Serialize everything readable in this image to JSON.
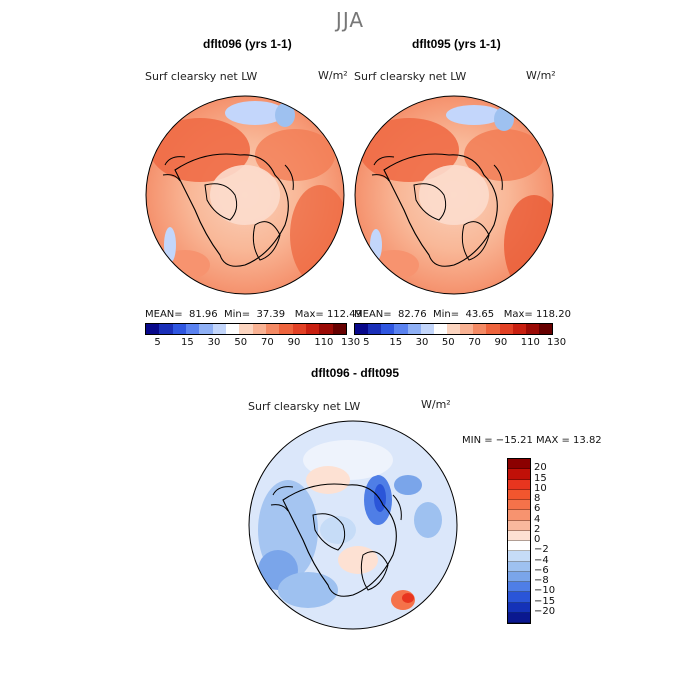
{
  "title": "JJA",
  "panels": [
    {
      "title": "dflt096 (yrs 1-1)",
      "variable": "Surf clearsky net LW",
      "units": "W/m²",
      "stats": {
        "mean": "81.96",
        "min": "37.39",
        "max": "112.49"
      }
    },
    {
      "title": "dflt095 (yrs 1-1)",
      "variable": "Surf clearsky net LW",
      "units": "W/m²",
      "stats": {
        "mean": "82.76",
        "min": "43.65",
        "max": "118.20"
      }
    }
  ],
  "stat_labels": {
    "mean": "MEAN=",
    "min": "Min=",
    "max": "Max="
  },
  "colorbar": {
    "ticks": [
      "5",
      "15",
      "30",
      "50",
      "70",
      "90",
      "110",
      "130"
    ],
    "colors": [
      "#08088a",
      "#1a2fb8",
      "#2f56e0",
      "#5a82f0",
      "#8fb0f5",
      "#c3d6fb",
      "#ffffff",
      "#fcd5c0",
      "#f9b293",
      "#f48a64",
      "#ee643d",
      "#e24125",
      "#c81f10",
      "#9a0a05",
      "#660000"
    ]
  },
  "diff": {
    "title": "dflt096 - dflt095",
    "variable": "Surf clearsky net LW",
    "units": "W/m²",
    "minmax": "MIN = −15.21  MAX =  13.82",
    "levels": [
      "20",
      "15",
      "10",
      "8",
      "6",
      "4",
      "2",
      "0",
      "−2",
      "−4",
      "−6",
      "−8",
      "−10",
      "−15",
      "−20"
    ],
    "colors": [
      "#8b0000",
      "#c01008",
      "#e8351f",
      "#f2562e",
      "#f5724a",
      "#f7936f",
      "#f9b89d",
      "#fde1d3",
      "#ffffff",
      "#c6dcf7",
      "#9ec1f0",
      "#7aa5ea",
      "#4f7ee6",
      "#2a55d8",
      "#1432b8",
      "#0a1890"
    ]
  }
}
